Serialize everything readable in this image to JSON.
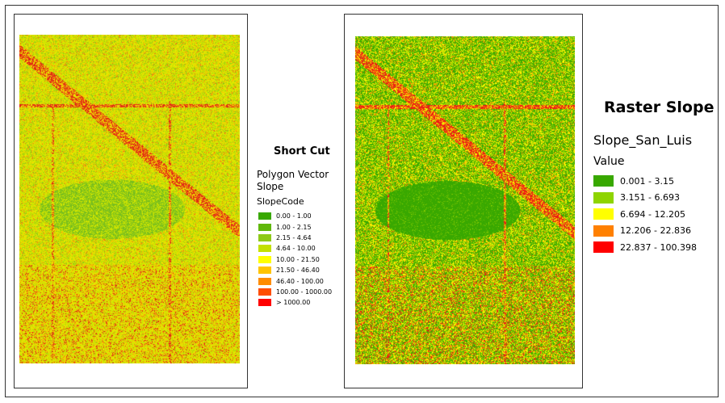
{
  "left_map": {
    "title": "Short Cut",
    "layer": "Polygon Vector",
    "layer_sub": "Slope",
    "field": "SlopeCode",
    "classes": [
      {
        "label": "0.00 - 1.00",
        "color": "#38a800"
      },
      {
        "label": "1.00 - 2.15",
        "color": "#60b80a"
      },
      {
        "label": "2.15 - 4.64",
        "color": "#8ec918"
      },
      {
        "label": "4.64 - 10.00",
        "color": "#c3e000"
      },
      {
        "label": "10.00 - 21.50",
        "color": "#ffff00"
      },
      {
        "label": "21.50 - 46.40",
        "color": "#ffc400"
      },
      {
        "label": "46.40 - 100.00",
        "color": "#ff8c00"
      },
      {
        "label": "100.00 - 1000.00",
        "color": "#ff4d00"
      },
      {
        "label": "> 1000.00",
        "color": "#ff0000"
      }
    ]
  },
  "right_map": {
    "title": "Raster Slope",
    "layer": "Slope_San_Luis",
    "field": "Value",
    "classes": [
      {
        "label": "0.001 - 3.15",
        "color": "#38a800"
      },
      {
        "label": "3.151 - 6.693",
        "color": "#8ed400"
      },
      {
        "label": "6.694 - 12.205",
        "color": "#ffff00"
      },
      {
        "label": "12.206 - 22.836",
        "color": "#ff8000"
      },
      {
        "label": "22.837 - 100.398",
        "color": "#ff0000"
      }
    ]
  }
}
